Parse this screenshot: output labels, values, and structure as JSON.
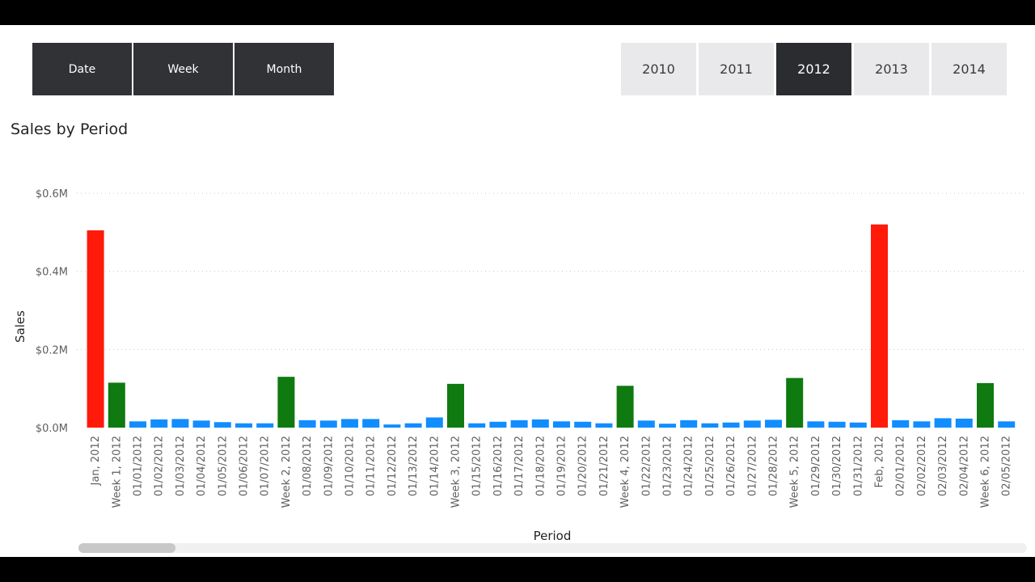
{
  "slicer_levels": [
    {
      "label": "Date"
    },
    {
      "label": "Week"
    },
    {
      "label": "Month"
    }
  ],
  "slicer_years": [
    {
      "label": "2010",
      "active": false
    },
    {
      "label": "2011",
      "active": false
    },
    {
      "label": "2012",
      "active": true
    },
    {
      "label": "2013",
      "active": false
    },
    {
      "label": "2014",
      "active": false
    }
  ],
  "chart": {
    "title": "Sales by Period",
    "colors": {
      "month": "#ff1a0a",
      "week": "#0e7a10",
      "day": "#118dff"
    }
  },
  "chart_data": {
    "type": "bar",
    "title": "Sales by Period",
    "xlabel": "Period",
    "ylabel": "Sales",
    "ylim": [
      0,
      0.6
    ],
    "y_ticks": [
      "$0.0M",
      "$0.2M",
      "$0.4M",
      "$0.6M"
    ],
    "y_tick_values": [
      0,
      0.2,
      0.4,
      0.6
    ],
    "value_unit": "$M",
    "grid": true,
    "categories": [
      "Jan, 2012",
      "Week 1, 2012",
      "01/01/2012",
      "01/02/2012",
      "01/03/2012",
      "01/04/2012",
      "01/05/2012",
      "01/06/2012",
      "01/07/2012",
      "Week 2, 2012",
      "01/08/2012",
      "01/09/2012",
      "01/10/2012",
      "01/11/2012",
      "01/12/2012",
      "01/13/2012",
      "01/14/2012",
      "Week 3, 2012",
      "01/15/2012",
      "01/16/2012",
      "01/17/2012",
      "01/18/2012",
      "01/19/2012",
      "01/20/2012",
      "01/21/2012",
      "Week 4, 2012",
      "01/22/2012",
      "01/23/2012",
      "01/24/2012",
      "01/25/2012",
      "01/26/2012",
      "01/27/2012",
      "01/28/2012",
      "Week 5, 2012",
      "01/29/2012",
      "01/30/2012",
      "01/31/2012",
      "Feb, 2012",
      "02/01/2012",
      "02/02/2012",
      "02/03/2012",
      "02/04/2012",
      "Week 6, 2012",
      "02/05/2012"
    ],
    "values": [
      0.505,
      0.115,
      0.016,
      0.021,
      0.022,
      0.018,
      0.014,
      0.011,
      0.011,
      0.13,
      0.019,
      0.018,
      0.022,
      0.022,
      0.008,
      0.011,
      0.026,
      0.112,
      0.011,
      0.015,
      0.019,
      0.021,
      0.016,
      0.015,
      0.011,
      0.107,
      0.018,
      0.01,
      0.019,
      0.011,
      0.013,
      0.018,
      0.02,
      0.127,
      0.016,
      0.015,
      0.013,
      0.52,
      0.019,
      0.016,
      0.024,
      0.023,
      0.114,
      0.016
    ],
    "levels": [
      "month",
      "week",
      "day",
      "day",
      "day",
      "day",
      "day",
      "day",
      "day",
      "week",
      "day",
      "day",
      "day",
      "day",
      "day",
      "day",
      "day",
      "week",
      "day",
      "day",
      "day",
      "day",
      "day",
      "day",
      "day",
      "week",
      "day",
      "day",
      "day",
      "day",
      "day",
      "day",
      "day",
      "week",
      "day",
      "day",
      "day",
      "month",
      "day",
      "day",
      "day",
      "day",
      "week",
      "day"
    ]
  }
}
